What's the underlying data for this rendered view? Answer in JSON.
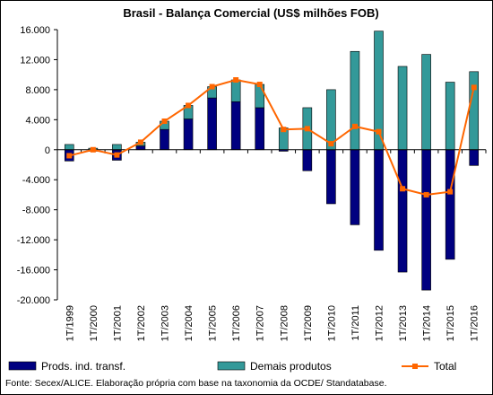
{
  "chart_data": {
    "type": "bar",
    "title": "Brasil - Balança Comercial (US$ milhões FOB)",
    "xlabel": "",
    "ylabel": "",
    "ylim": [
      -20000,
      16000
    ],
    "yticks": [
      16000,
      12000,
      8000,
      4000,
      0,
      -4000,
      -8000,
      -12000,
      -16000,
      -20000
    ],
    "ytick_labels": [
      "16.000",
      "12.000",
      "8.000",
      "4.000",
      "0",
      "-4.000",
      "-8.000",
      "-12.000",
      "-16.000",
      "-20.000"
    ],
    "categories": [
      "1T/1999",
      "1T/2000",
      "1T/2001",
      "1T/2002",
      "1T/2003",
      "1T/2004",
      "1T/2005",
      "1T/2006",
      "1T/2007",
      "1T/2008",
      "1T/2009",
      "1T/2010",
      "1T/2011",
      "1T/2012",
      "1T/2013",
      "1T/2014",
      "1T/2015",
      "1T/2016"
    ],
    "series": [
      {
        "name": "Prods. ind. transf.",
        "type": "bar",
        "color": "#000080",
        "values": [
          -1500,
          -200,
          -1400,
          500,
          2700,
          4100,
          6900,
          6400,
          5600,
          -200,
          -2800,
          -7200,
          -10000,
          -13400,
          -16300,
          -18700,
          -14600,
          -2100
        ]
      },
      {
        "name": "Demais produtos",
        "type": "bar",
        "color": "#339999",
        "values": [
          700,
          200,
          700,
          500,
          1100,
          1800,
          1500,
          2900,
          3100,
          2900,
          5600,
          8000,
          13100,
          15800,
          11100,
          12700,
          9000,
          10400
        ]
      },
      {
        "name": "Total",
        "type": "line",
        "color": "#FF6600",
        "values": [
          -800,
          0,
          -700,
          1000,
          3800,
          5900,
          8400,
          9300,
          8700,
          2700,
          2800,
          800,
          3100,
          2400,
          -5200,
          -6000,
          -5600,
          8300
        ]
      }
    ],
    "legend": {
      "position": "bottom"
    },
    "grid": false,
    "source": "Fonte: Secex/ALICE. Elaboração própria com base na taxonomia da OCDE/ Standatabase."
  }
}
